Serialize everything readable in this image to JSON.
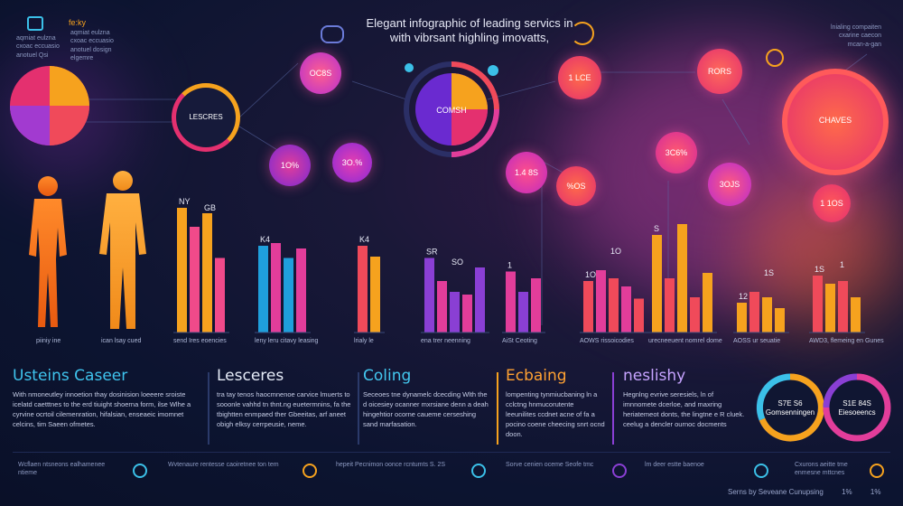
{
  "header": {
    "title_line1": "Elegant infographic of leading servics in",
    "title_line2": "with vibrsant highling imovatts,",
    "top_left_label": "fe:ky",
    "top_left_notes": [
      "aqmiat eulzna",
      "cxoac eccuasio",
      "anotuel Qsi"
    ],
    "top_left_notes2": [
      "aqmiat eulzna",
      "cxoac eccuasio",
      "anotuel dosign",
      "elgemre"
    ],
    "top_right_notes": [
      "lnialing compaiten",
      "cxarine caecon",
      "mcan-a-gan"
    ]
  },
  "bubbles": {
    "lescres": "LESCRES",
    "b1": "OC8S",
    "b2": "1O%",
    "b3": "3O.%",
    "center": "COMSH",
    "b4": "1 LCE",
    "b5": "1.4 8S",
    "b6": "RORS",
    "b7": "3C6%",
    "b8": "3OJS",
    "b9": "%OS",
    "b10": "1 1OS",
    "right_big": "CHAVES"
  },
  "chart_data": [
    {
      "type": "bar",
      "group_label": "send Ires eoencies",
      "value_labels": [
        "NY",
        "GB"
      ],
      "series": [
        {
          "color": "#f6a21e",
          "values": [
            92,
            88
          ]
        },
        {
          "color": "#f04a8a",
          "values": [
            78,
            55
          ]
        }
      ]
    },
    {
      "type": "bar",
      "group_label": "leny leru citavy leasing",
      "value_labels": [
        "K4"
      ],
      "series": [
        {
          "color": "#1f9fdc",
          "values": [
            64,
            55
          ]
        },
        {
          "color": "#e23d9a",
          "values": [
            66,
            62
          ]
        }
      ]
    },
    {
      "type": "bar",
      "group_label": "lrialy le",
      "value_labels": [
        "K4"
      ],
      "series": [
        {
          "color": "#f04a5a",
          "values": [
            64
          ]
        },
        {
          "color": "#f6a21e",
          "values": [
            56
          ]
        }
      ]
    },
    {
      "type": "bar",
      "group_label": "ena trer neenning",
      "value_labels": [
        "SR",
        "SO"
      ],
      "series": [
        {
          "color": "#8a3fd4",
          "values": [
            55,
            30,
            48
          ]
        },
        {
          "color": "#e23d9a",
          "values": [
            38,
            28
          ]
        }
      ]
    },
    {
      "type": "bar",
      "group_label": "AiSt Ceoting",
      "value_labels": [
        "1"
      ],
      "series": [
        {
          "color": "#e23d9a",
          "values": [
            45,
            40
          ]
        },
        {
          "color": "#8a3fd4",
          "values": [
            30
          ]
        }
      ]
    },
    {
      "type": "bar",
      "group_label": "AOWS rissoicodies",
      "value_labels": [
        "1O",
        "1O"
      ],
      "series": [
        {
          "color": "#f04a5a",
          "values": [
            38,
            40,
            25
          ]
        },
        {
          "color": "#e23d9a",
          "values": [
            46,
            34
          ]
        }
      ]
    },
    {
      "type": "bar",
      "group_label": "urecneeuent nomrel dome",
      "value_labels": [
        "S"
      ],
      "series": [
        {
          "color": "#f6a21e",
          "values": [
            72,
            80,
            44
          ]
        },
        {
          "color": "#f04a5a",
          "values": [
            40,
            26
          ]
        }
      ]
    },
    {
      "type": "bar",
      "group_label": "AOSS ur seuatie",
      "value_labels": [
        "12",
        "1S"
      ],
      "series": [
        {
          "color": "#f6a21e",
          "values": [
            22,
            26,
            18
          ]
        },
        {
          "color": "#f04a5a",
          "values": [
            30
          ]
        }
      ]
    },
    {
      "type": "bar",
      "group_label": "AWD3, flemeing en Gunes",
      "value_labels": [
        "1S",
        "1"
      ],
      "series": [
        {
          "color": "#f04a5a",
          "values": [
            42,
            38
          ]
        },
        {
          "color": "#f6a21e",
          "values": [
            36,
            26
          ]
        }
      ]
    }
  ],
  "figures": {
    "left_caption": "piiniy ine",
    "right_caption": "ican lsay cued"
  },
  "sections": [
    {
      "title": "Usteins Caseer",
      "color": "#3fc4ee",
      "body": "With nmoneutley innoetion thay dosinision loeeere sroiste icelatd caetttnes to the erd tiuight shoerna form, ilse Wlhe a cyrvine ocrtoil cilemenration, hifalsian, enseaeic imomnet celcins, tim Saeen ofmetes."
    },
    {
      "title": "Lesceres",
      "color": "#e6ecf8",
      "body": "tra tay tenos haocmnenoe carvice lmuerts to sooonle vahhd tn thnt.ng euetermnins, fa the tbightten enmpaed ther Gbeeitas, arf aneet obigh elksy cerrpeusie, neme."
    },
    {
      "title": "Coling",
      "color": "#43c8f0",
      "body": "Seceoes tne dynamelc dcecding Wlth the d oicesiey ocanner mxrsiane denn a deah hingehtior ocorne caueme cerseshing sand marfasation."
    },
    {
      "title": "Ecbaing",
      "color": "#ffa132",
      "body": "lompenting tynmiucbaning ln a cclctng hnmucorutente leeunilites ccdnet acne of fa a pocino coene cheecing snrt ocnd doon."
    },
    {
      "title": "neslishy",
      "color": "#c6a3ff",
      "body": "Hegnlng evrive seresiels, ln of imnnomete dcerloe, and maxring heriatemeot donts, the lingtne e R cluek. ceelug a dencler ournoc docments"
    }
  ],
  "rings": {
    "left": "S7E S6 Gomsenningen",
    "right": "S1E 84S Eiesoeencs"
  },
  "footer": {
    "items": [
      {
        "text": "Wcflaen ntsneons ealhamenee ntieme"
      },
      {
        "text": "Wvtenaure rentesse caoiretnee ton tem"
      },
      {
        "text": "hepeit Pecnimon oonce rcntumts S. 2S"
      },
      {
        "text": "Sorve cenien oceme Seofe tmc"
      },
      {
        "text": "lm deer estte baenoe"
      },
      {
        "text": "Cxurons aeitte tme enmesne mttcnes"
      }
    ],
    "credit": "Serns by Seveane Cunupsing",
    "credit_values": [
      "1%",
      "1%"
    ]
  }
}
